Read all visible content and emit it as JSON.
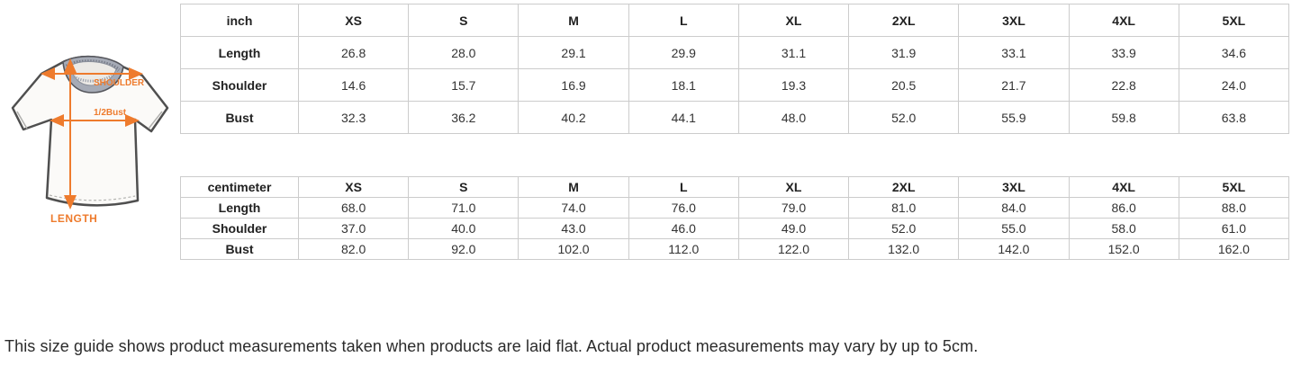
{
  "diagram": {
    "shoulder_label": "SHOULDER",
    "half_bust_label": "1/2Bust",
    "length_label": "LENGTH",
    "accent_color": "#ee7b2d",
    "collar_color": "#a6abb6",
    "shirt_fill": "#fbfaf8",
    "outline_color": "#4f4f4f"
  },
  "tables": [
    {
      "unit_label": "inch",
      "columns": [
        "XS",
        "S",
        "M",
        "L",
        "XL",
        "2XL",
        "3XL",
        "4XL",
        "5XL"
      ],
      "rows": [
        {
          "label": "Length",
          "values": [
            "26.8",
            "28.0",
            "29.1",
            "29.9",
            "31.1",
            "31.9",
            "33.1",
            "33.9",
            "34.6"
          ]
        },
        {
          "label": "Shoulder",
          "values": [
            "14.6",
            "15.7",
            "16.9",
            "18.1",
            "19.3",
            "20.5",
            "21.7",
            "22.8",
            "24.0"
          ]
        },
        {
          "label": "Bust",
          "values": [
            "32.3",
            "36.2",
            "40.2",
            "44.1",
            "48.0",
            "52.0",
            "55.9",
            "59.8",
            "63.8"
          ]
        }
      ]
    },
    {
      "unit_label": "centimeter",
      "columns": [
        "XS",
        "S",
        "M",
        "L",
        "XL",
        "2XL",
        "3XL",
        "4XL",
        "5XL"
      ],
      "rows": [
        {
          "label": "Length",
          "values": [
            "68.0",
            "71.0",
            "74.0",
            "76.0",
            "79.0",
            "81.0",
            "84.0",
            "86.0",
            "88.0"
          ]
        },
        {
          "label": "Shoulder",
          "values": [
            "37.0",
            "40.0",
            "43.0",
            "46.0",
            "49.0",
            "52.0",
            "55.0",
            "58.0",
            "61.0"
          ]
        },
        {
          "label": "Bust",
          "values": [
            "82.0",
            "92.0",
            "102.0",
            "112.0",
            "122.0",
            "132.0",
            "142.0",
            "152.0",
            "162.0"
          ]
        }
      ]
    }
  ],
  "note": "This size guide shows product measurements taken when products are laid flat. Actual product measurements may vary by up to 5cm."
}
